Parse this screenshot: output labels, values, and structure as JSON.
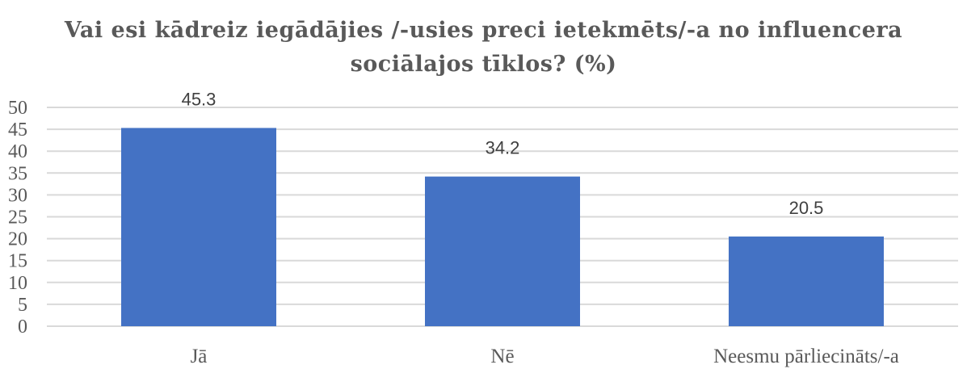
{
  "chart_data": {
    "type": "bar",
    "title_lines": [
      "Vai esi kādreiz iegādājies /-usies preci ietekmēts/-a no influencera",
      "sociālajos tīklos? (%)"
    ],
    "categories": [
      "Jā",
      "Nē",
      "Neesmu pārliecināts/-a"
    ],
    "values": [
      45.3,
      34.2,
      20.5
    ],
    "data_labels": [
      "45.3",
      "34.2",
      "20.5"
    ],
    "ylim": [
      0,
      50
    ],
    "yticks": [
      "0",
      "5",
      "10",
      "15",
      "20",
      "25",
      "30",
      "35",
      "40",
      "45",
      "50"
    ],
    "grid": true,
    "legend": "none",
    "bar_color": "#4472c4",
    "grid_color": "#d9d9d9"
  }
}
